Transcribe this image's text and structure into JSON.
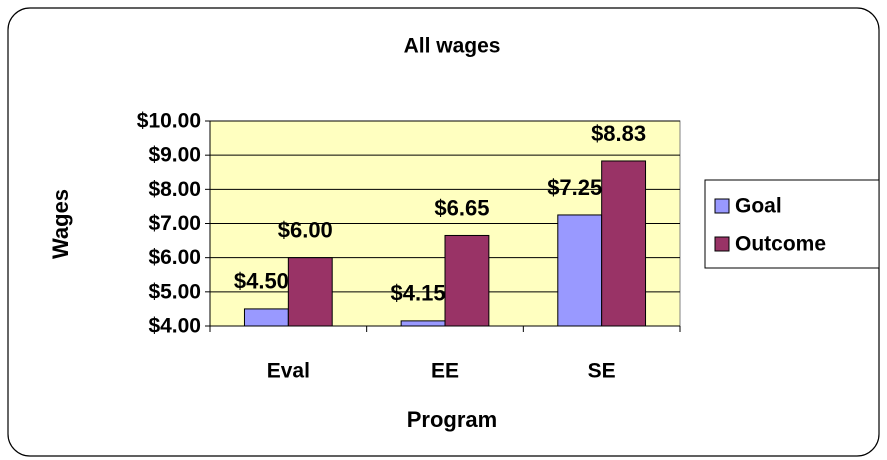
{
  "chart_data": {
    "type": "bar",
    "title": "All wages",
    "x_label": "Program",
    "y_label": "Wages",
    "categories": [
      "Eval",
      "EE",
      "SE"
    ],
    "series": [
      {
        "name": "Goal",
        "color": "#9999ff",
        "values": [
          4.5,
          4.15,
          7.25
        ],
        "value_labels": [
          "$4.50",
          "$4.15",
          "$7.25"
        ]
      },
      {
        "name": "Outcome",
        "color": "#993366",
        "values": [
          6.0,
          6.65,
          8.83
        ],
        "value_labels": [
          "$6.00",
          "$6.65",
          "$8.83"
        ]
      }
    ],
    "ylim": [
      4,
      10
    ],
    "yticks": [
      {
        "value": 4,
        "label": "$4.00"
      },
      {
        "value": 5,
        "label": "$5.00"
      },
      {
        "value": 6,
        "label": "$6.00"
      },
      {
        "value": 7,
        "label": "$7.00"
      },
      {
        "value": 8,
        "label": "$8.00"
      },
      {
        "value": 9,
        "label": "$9.00"
      },
      {
        "value": 10,
        "label": "$10.00"
      }
    ],
    "grid": true,
    "legend": "right",
    "plot_background": "#ffffc0"
  }
}
